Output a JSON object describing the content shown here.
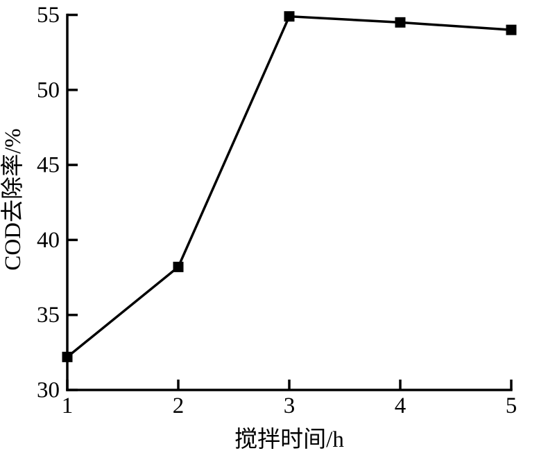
{
  "figure": {
    "background_color": "#ffffff",
    "line_color": "#000000",
    "marker_shape": "filled-square"
  },
  "chart_data": {
    "type": "line",
    "title": "",
    "xlabel": "搅拌时间/h",
    "ylabel": "COD去除率/%",
    "x": [
      1,
      2,
      3,
      4,
      5
    ],
    "values": [
      32.2,
      38.2,
      54.9,
      54.5,
      54.0
    ],
    "series_name": "COD去除率",
    "xlim": [
      1,
      5
    ],
    "ylim": [
      30,
      55
    ],
    "xticks": [
      1,
      2,
      3,
      4,
      5
    ],
    "yticks": [
      30,
      35,
      40,
      45,
      50,
      55
    ],
    "xtick_labels": [
      "1",
      "2",
      "3",
      "4",
      "5"
    ],
    "ytick_labels": [
      "30",
      "35",
      "40",
      "45",
      "50",
      "55"
    ],
    "grid": false,
    "legend": "none"
  }
}
